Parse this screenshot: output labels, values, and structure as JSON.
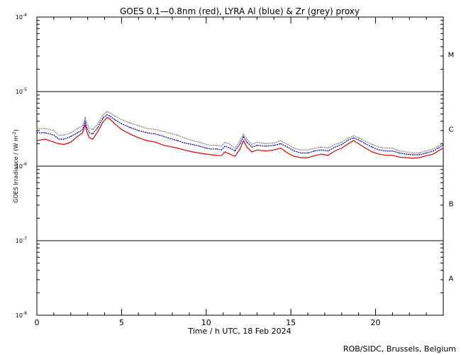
{
  "chart_data": {
    "type": "line",
    "title": "GOES 0.1—0.8nm (red), LYRA Al (blue) & Zr (grey) proxy",
    "xlabel": "Time / h UTC, 18 Feb 2024",
    "ylabel_main": "GOES Irradiance / (W m",
    "ylabel_exp": "-2",
    "ylabel_end": ")",
    "credit": "ROB/SIDC, Brussels, Belgium",
    "xlim": [
      0,
      24
    ],
    "ylim": [
      1e-08,
      0.0001
    ],
    "yscale": "log",
    "x_ticks": [
      {
        "value": 0,
        "label": "0"
      },
      {
        "value": 5,
        "label": "5"
      },
      {
        "value": 10,
        "label": "10"
      },
      {
        "value": 15,
        "label": "15"
      },
      {
        "value": 20,
        "label": "20"
      }
    ],
    "y_ticks": [
      {
        "exp": -8,
        "label": "10",
        "sup": "-8"
      },
      {
        "exp": -7,
        "label": "10",
        "sup": "-7"
      },
      {
        "exp": -6,
        "label": "10",
        "sup": "-6"
      },
      {
        "exp": -5,
        "label": "10",
        "sup": "-5"
      },
      {
        "exp": -4,
        "label": "10",
        "sup": "-4"
      }
    ],
    "class_lines": [
      -7,
      -6,
      -5
    ],
    "flare_classes": [
      {
        "label": "M",
        "exp": -4.5
      },
      {
        "label": "C",
        "exp": -5.5
      },
      {
        "label": "B",
        "exp": -6.5
      },
      {
        "label": "A",
        "exp": -7.5
      }
    ],
    "series": [
      {
        "name": "Zr",
        "color": "#808080",
        "x": [
          0.0,
          0.5,
          1.0,
          1.3,
          1.6,
          2.0,
          2.4,
          2.7,
          2.85,
          2.95,
          3.1,
          3.3,
          3.6,
          3.9,
          4.15,
          4.3,
          4.6,
          5.0,
          5.5,
          6.0,
          6.5,
          7.0,
          7.5,
          8.0,
          8.3,
          8.7,
          9.2,
          9.6,
          10.0,
          10.3,
          10.6,
          10.9,
          11.1,
          11.4,
          11.7,
          12.0,
          12.2,
          12.4,
          12.7,
          13.0,
          13.5,
          14.0,
          14.4,
          14.8,
          15.2,
          15.6,
          16.0,
          16.4,
          16.8,
          17.2,
          17.6,
          18.0,
          18.4,
          18.7,
          19.0,
          19.4,
          19.8,
          20.2,
          20.6,
          21.0,
          21.4,
          21.8,
          22.2,
          22.6,
          23.0,
          23.4,
          23.7,
          24.0
        ],
        "values": [
          3.2e-06,
          3.2e-06,
          3e-06,
          2.6e-06,
          2.6e-06,
          2.8e-06,
          3.2e-06,
          3.5e-06,
          4.5e-06,
          3.8e-06,
          3.2e-06,
          3.1e-06,
          3.7e-06,
          4.8e-06,
          5.4e-06,
          5.2e-06,
          4.7e-06,
          4.2e-06,
          3.8e-06,
          3.5e-06,
          3.2e-06,
          3.1e-06,
          2.9e-06,
          2.7e-06,
          2.6e-06,
          2.4e-06,
          2.2e-06,
          2.1e-06,
          1.95e-06,
          1.9e-06,
          1.9e-06,
          1.85e-06,
          2.1e-06,
          1.95e-06,
          1.75e-06,
          2.2e-06,
          2.7e-06,
          2.3e-06,
          1.95e-06,
          2.1e-06,
          2e-06,
          2.05e-06,
          2.2e-06,
          1.95e-06,
          1.75e-06,
          1.65e-06,
          1.65e-06,
          1.75e-06,
          1.8e-06,
          1.75e-06,
          1.95e-06,
          2.1e-06,
          2.4e-06,
          2.55e-06,
          2.4e-06,
          2.15e-06,
          1.95e-06,
          1.8e-06,
          1.75e-06,
          1.75e-06,
          1.6e-06,
          1.55e-06,
          1.5e-06,
          1.5e-06,
          1.6e-06,
          1.7e-06,
          1.85e-06,
          2e-06
        ]
      },
      {
        "name": "Al",
        "color": "#0000cc",
        "x": [
          0.0,
          0.5,
          1.0,
          1.3,
          1.6,
          2.0,
          2.4,
          2.7,
          2.85,
          2.95,
          3.1,
          3.3,
          3.6,
          3.9,
          4.15,
          4.3,
          4.6,
          5.0,
          5.5,
          6.0,
          6.5,
          7.0,
          7.5,
          8.0,
          8.3,
          8.7,
          9.2,
          9.6,
          10.0,
          10.3,
          10.6,
          10.9,
          11.1,
          11.4,
          11.7,
          12.0,
          12.2,
          12.4,
          12.7,
          13.0,
          13.5,
          14.0,
          14.4,
          14.8,
          15.2,
          15.6,
          16.0,
          16.4,
          16.8,
          17.2,
          17.6,
          18.0,
          18.4,
          18.7,
          19.0,
          19.4,
          19.8,
          20.2,
          20.6,
          21.0,
          21.4,
          21.8,
          22.2,
          22.6,
          23.0,
          23.4,
          23.7,
          24.0
        ],
        "values": [
          2.8e-06,
          2.8e-06,
          2.6e-06,
          2.3e-06,
          2.3e-06,
          2.5e-06,
          2.8e-06,
          3.1e-06,
          4e-06,
          3.3e-06,
          2.8e-06,
          2.7e-06,
          3.3e-06,
          4.4e-06,
          4.9e-06,
          4.7e-06,
          4.2e-06,
          3.7e-06,
          3.3e-06,
          3e-06,
          2.8e-06,
          2.7e-06,
          2.5e-06,
          2.3e-06,
          2.2e-06,
          2.05e-06,
          1.95e-06,
          1.85e-06,
          1.75e-06,
          1.7e-06,
          1.7e-06,
          1.65e-06,
          1.85e-06,
          1.75e-06,
          1.6e-06,
          2e-06,
          2.5e-06,
          2.1e-06,
          1.8e-06,
          1.9e-06,
          1.85e-06,
          1.9e-06,
          2e-06,
          1.8e-06,
          1.6e-06,
          1.5e-06,
          1.5e-06,
          1.6e-06,
          1.65e-06,
          1.6e-06,
          1.8e-06,
          1.95e-06,
          2.25e-06,
          2.4e-06,
          2.25e-06,
          2e-06,
          1.8e-06,
          1.65e-06,
          1.6e-06,
          1.6e-06,
          1.5e-06,
          1.45e-06,
          1.42e-06,
          1.42e-06,
          1.5e-06,
          1.6e-06,
          1.75e-06,
          1.9e-06
        ]
      },
      {
        "name": "GOES 0.1—0.8nm",
        "color": "#dd0000",
        "x": [
          0.0,
          0.5,
          1.0,
          1.3,
          1.6,
          2.0,
          2.4,
          2.7,
          2.85,
          2.95,
          3.1,
          3.3,
          3.6,
          3.9,
          4.15,
          4.3,
          4.6,
          5.0,
          5.5,
          6.0,
          6.5,
          7.0,
          7.5,
          8.0,
          8.3,
          8.7,
          9.2,
          9.6,
          10.0,
          10.3,
          10.6,
          10.9,
          11.1,
          11.4,
          11.7,
          12.0,
          12.2,
          12.4,
          12.7,
          13.0,
          13.5,
          14.0,
          14.4,
          14.8,
          15.2,
          15.6,
          16.0,
          16.4,
          16.8,
          17.2,
          17.6,
          18.0,
          18.4,
          18.7,
          19.0,
          19.4,
          19.8,
          20.2,
          20.6,
          21.0,
          21.4,
          21.8,
          22.2,
          22.6,
          23.0,
          23.4,
          23.7,
          24.0
        ],
        "values": [
          2.2e-06,
          2.3e-06,
          2.1e-06,
          2e-06,
          1.95e-06,
          2.1e-06,
          2.5e-06,
          2.8e-06,
          3.6e-06,
          2.9e-06,
          2.4e-06,
          2.3e-06,
          2.9e-06,
          3.9e-06,
          4.5e-06,
          4.3e-06,
          3.7e-06,
          3.1e-06,
          2.7e-06,
          2.4e-06,
          2.2e-06,
          2.1e-06,
          1.9e-06,
          1.8e-06,
          1.75e-06,
          1.65e-06,
          1.55e-06,
          1.5e-06,
          1.45e-06,
          1.42e-06,
          1.4e-06,
          1.38e-06,
          1.55e-06,
          1.45e-06,
          1.35e-06,
          1.7e-06,
          2.2e-06,
          1.8e-06,
          1.55e-06,
          1.65e-06,
          1.6e-06,
          1.65e-06,
          1.75e-06,
          1.5e-06,
          1.35e-06,
          1.3e-06,
          1.3e-06,
          1.38e-06,
          1.45e-06,
          1.4e-06,
          1.6e-06,
          1.75e-06,
          2e-06,
          2.2e-06,
          2e-06,
          1.75e-06,
          1.55e-06,
          1.45e-06,
          1.4e-06,
          1.4e-06,
          1.32e-06,
          1.3e-06,
          1.28e-06,
          1.3e-06,
          1.38e-06,
          1.45e-06,
          1.6e-06,
          1.75e-06
        ]
      }
    ]
  }
}
